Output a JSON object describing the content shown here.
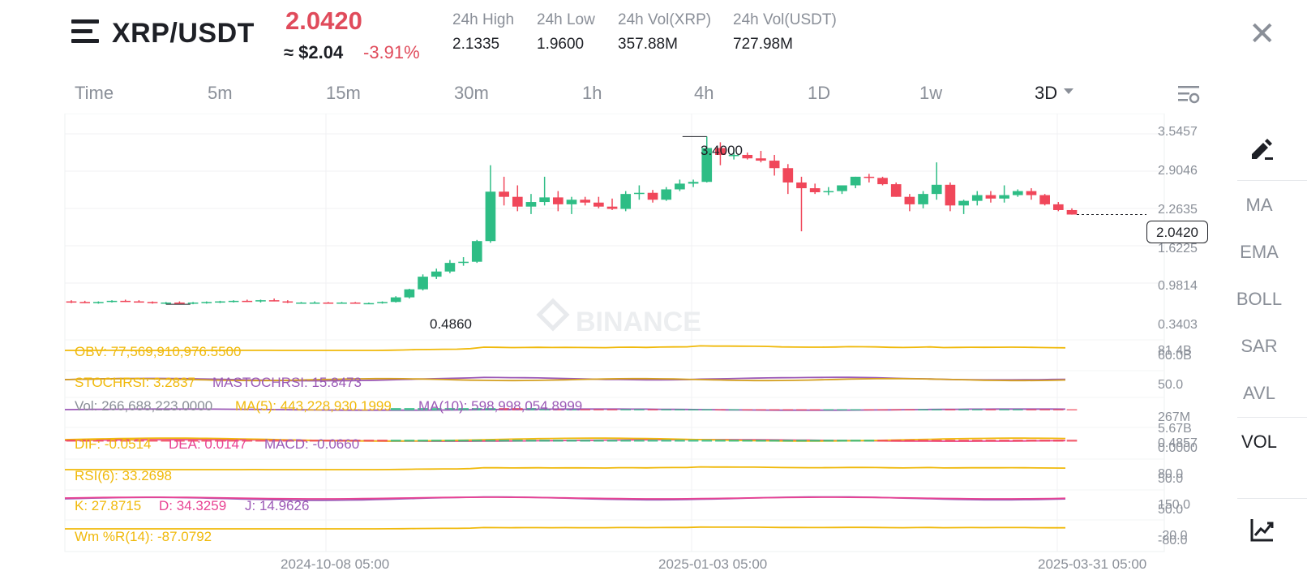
{
  "header": {
    "pair": "XRP/USDT",
    "price": "2.0420",
    "usd_price": "≈ $2.04",
    "change": "-3.91%",
    "stats": [
      {
        "label": "24h High",
        "value": "2.1335"
      },
      {
        "label": "24h Low",
        "value": "1.9600"
      },
      {
        "label": "24h Vol(XRP)",
        "value": "357.88M"
      },
      {
        "label": "24h Vol(USDT)",
        "value": "727.98M"
      }
    ]
  },
  "timeframes": [
    {
      "label": "Time"
    },
    {
      "label": "5m"
    },
    {
      "label": "15m"
    },
    {
      "label": "30m"
    },
    {
      "label": "1h"
    },
    {
      "label": "4h"
    },
    {
      "label": "1D"
    },
    {
      "label": "1w"
    },
    {
      "label": "3D",
      "active": true
    }
  ],
  "right_tools": [
    "MA",
    "EMA",
    "BOLL",
    "SAR",
    "AVL",
    "VOL"
  ],
  "icons": {
    "menu": "menu-icon",
    "close": "close-icon",
    "settings": "chart-settings-icon",
    "draw": "pencil-draw-icon",
    "indicator": "indicator-chart-icon",
    "dropdown": "chevron-down-icon"
  },
  "colors": {
    "up": "#2ebd85",
    "down": "#f0475a",
    "yellow": "#f0b90b",
    "purple": "#9b59b6",
    "pink": "#e84393"
  },
  "chart_data": {
    "type": "candlestick",
    "y_axis_labels": [
      "3.5457",
      "2.9046",
      "2.2635",
      "1.6225",
      "0.9814",
      "0.3403"
    ],
    "x_axis_labels": [
      "2024-10-08 05:00",
      "2025-01-03 05:00",
      "2025-03-31 05:00"
    ],
    "annotations": {
      "high": "3.4000",
      "low": "0.4860"
    },
    "current_price": "2.0420",
    "candles": [
      [
        0.53,
        0.55,
        0.5,
        0.52
      ],
      [
        0.52,
        0.54,
        0.5,
        0.51
      ],
      [
        0.51,
        0.53,
        0.49,
        0.52
      ],
      [
        0.52,
        0.55,
        0.51,
        0.54
      ],
      [
        0.54,
        0.56,
        0.52,
        0.53
      ],
      [
        0.53,
        0.55,
        0.51,
        0.52
      ],
      [
        0.52,
        0.53,
        0.49,
        0.5
      ],
      [
        0.5,
        0.52,
        0.48,
        0.51
      ],
      [
        0.51,
        0.53,
        0.49,
        0.5
      ],
      [
        0.5,
        0.52,
        0.48,
        0.51
      ],
      [
        0.51,
        0.53,
        0.49,
        0.52
      ],
      [
        0.52,
        0.54,
        0.5,
        0.53
      ],
      [
        0.53,
        0.55,
        0.51,
        0.54
      ],
      [
        0.54,
        0.56,
        0.52,
        0.53
      ],
      [
        0.53,
        0.56,
        0.51,
        0.55
      ],
      [
        0.55,
        0.58,
        0.53,
        0.53
      ],
      [
        0.53,
        0.55,
        0.5,
        0.51
      ],
      [
        0.51,
        0.52,
        0.49,
        0.51
      ],
      [
        0.51,
        0.53,
        0.49,
        0.51
      ],
      [
        0.51,
        0.52,
        0.49,
        0.5
      ],
      [
        0.5,
        0.52,
        0.49,
        0.51
      ],
      [
        0.51,
        0.52,
        0.49,
        0.49
      ],
      [
        0.49,
        0.51,
        0.486,
        0.5
      ],
      [
        0.5,
        0.53,
        0.49,
        0.52
      ],
      [
        0.52,
        0.62,
        0.51,
        0.6
      ],
      [
        0.6,
        0.75,
        0.58,
        0.74
      ],
      [
        0.74,
        1.0,
        0.72,
        0.96
      ],
      [
        0.96,
        1.1,
        0.92,
        1.05
      ],
      [
        1.05,
        1.25,
        1.02,
        1.2
      ],
      [
        1.2,
        1.3,
        1.15,
        1.22
      ],
      [
        1.22,
        1.6,
        1.2,
        1.58
      ],
      [
        1.58,
        2.9,
        1.55,
        2.44
      ],
      [
        2.44,
        2.7,
        2.2,
        2.35
      ],
      [
        2.35,
        2.55,
        2.1,
        2.18
      ],
      [
        2.18,
        2.4,
        2.05,
        2.26
      ],
      [
        2.26,
        2.7,
        2.2,
        2.34
      ],
      [
        2.34,
        2.45,
        2.1,
        2.22
      ],
      [
        2.22,
        2.35,
        2.05,
        2.3
      ],
      [
        2.3,
        2.35,
        2.2,
        2.25
      ],
      [
        2.25,
        2.35,
        2.15,
        2.18
      ],
      [
        2.18,
        2.32,
        2.12,
        2.14
      ],
      [
        2.14,
        2.45,
        2.1,
        2.4
      ],
      [
        2.4,
        2.55,
        2.3,
        2.42
      ],
      [
        2.42,
        2.47,
        2.25,
        2.3
      ],
      [
        2.3,
        2.52,
        2.28,
        2.48
      ],
      [
        2.48,
        2.65,
        2.45,
        2.58
      ],
      [
        2.58,
        2.65,
        2.52,
        2.61
      ],
      [
        2.61,
        3.4,
        2.6,
        3.2
      ],
      [
        3.2,
        3.3,
        2.9,
        3.08
      ],
      [
        3.08,
        3.18,
        3.0,
        3.08
      ],
      [
        3.08,
        3.12,
        3.0,
        3.02
      ],
      [
        3.02,
        3.15,
        2.95,
        2.98
      ],
      [
        2.98,
        3.08,
        2.72,
        2.85
      ],
      [
        2.85,
        2.92,
        2.4,
        2.6
      ],
      [
        2.6,
        2.7,
        1.75,
        2.5
      ],
      [
        2.5,
        2.58,
        2.4,
        2.43
      ],
      [
        2.43,
        2.52,
        2.38,
        2.45
      ],
      [
        2.45,
        2.55,
        2.4,
        2.55
      ],
      [
        2.55,
        2.7,
        2.5,
        2.7
      ],
      [
        2.7,
        2.75,
        2.6,
        2.68
      ],
      [
        2.68,
        2.7,
        2.55,
        2.57
      ],
      [
        2.57,
        2.6,
        2.35,
        2.35
      ],
      [
        2.35,
        2.4,
        2.1,
        2.22
      ],
      [
        2.22,
        2.45,
        2.15,
        2.4
      ],
      [
        2.4,
        2.95,
        2.3,
        2.56
      ],
      [
        2.56,
        2.6,
        2.1,
        2.2
      ],
      [
        2.2,
        2.3,
        2.05,
        2.28
      ],
      [
        2.28,
        2.45,
        2.2,
        2.38
      ],
      [
        2.38,
        2.45,
        2.25,
        2.32
      ],
      [
        2.32,
        2.55,
        2.25,
        2.38
      ],
      [
        2.38,
        2.48,
        2.35,
        2.45
      ],
      [
        2.45,
        2.5,
        2.3,
        2.38
      ],
      [
        2.38,
        2.4,
        2.2,
        2.22
      ],
      [
        2.22,
        2.26,
        2.1,
        2.12
      ],
      [
        2.12,
        2.15,
        2.04,
        2.042
      ]
    ]
  },
  "indicators": {
    "obv": {
      "text": "OBV: 77,569,910,976.5500",
      "axis": [
        "81.4B",
        "60.0B"
      ]
    },
    "stoch": {
      "stochrsi": "STOCHRSI: 3.2837",
      "mastochrsi": "MASTOCHRSI: 15.8473",
      "axis": [
        "50.0"
      ]
    },
    "vol": {
      "vol": "Vol: 266,688,223.0000",
      "ma5": "MA(5): 443,228,930.1999",
      "ma10": "MA(10): 598,998,054.8999",
      "axis": [
        "267M",
        "5.67B"
      ]
    },
    "macd": {
      "dif": "DIF: -0.0514",
      "dea": "DEA: 0.0147",
      "macd": "MACD: -0.0660",
      "axis": [
        "0.4857",
        "0.0000"
      ]
    },
    "rsi": {
      "rsi6": "RSI(6): 33.2698",
      "axis": [
        "80.0",
        "50.0"
      ]
    },
    "kdj": {
      "k": "K: 27.8715",
      "d": "D: 34.3259",
      "j": "J: 14.9626",
      "axis": [
        "150.0",
        "50.0"
      ]
    },
    "wr": {
      "wr": "Wm %R(14): -87.0792",
      "axis": [
        "-20.0",
        "-80.0"
      ]
    }
  }
}
